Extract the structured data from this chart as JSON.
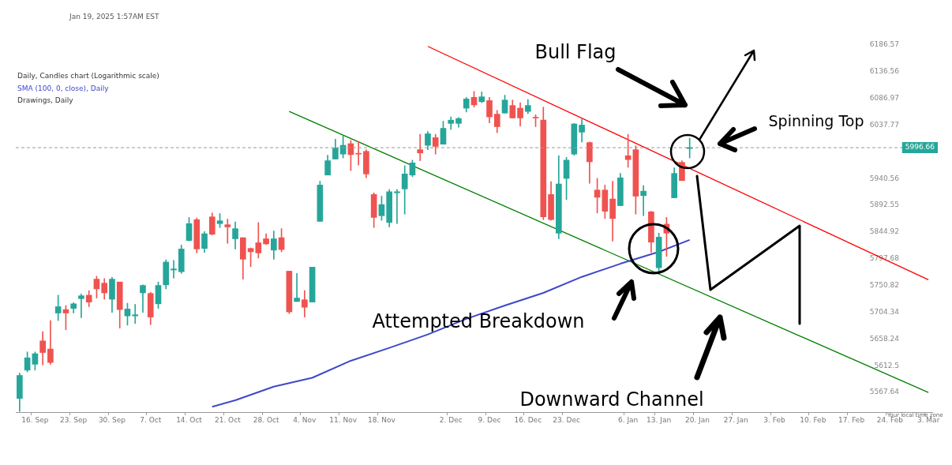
{
  "chart_data": {
    "type": "candlestick",
    "title": "Daily, Candles chart (Logarithmic scale)",
    "categories": [
      null,
      null,
      "16. Sep",
      null,
      null,
      null,
      null,
      "23. Sep",
      null,
      null,
      null,
      null,
      "30. Sep",
      null,
      null,
      null,
      null,
      "7. Oct",
      null,
      null,
      null,
      null,
      "14. Oct",
      null,
      null,
      null,
      null,
      "21. Oct",
      null,
      null,
      null,
      null,
      "28. Oct",
      null,
      null,
      null,
      null,
      "4. Nov",
      null,
      null,
      null,
      null,
      "11. Nov",
      null,
      null,
      null,
      null,
      "18. Nov",
      null,
      null,
      null,
      null,
      null,
      null,
      null,
      null,
      "2. Dec",
      null,
      null,
      null,
      null,
      "9. Dec",
      null,
      null,
      null,
      null,
      "16. Dec",
      null,
      null,
      null,
      null,
      "23. Dec",
      null,
      null,
      null,
      null,
      null,
      null,
      null,
      "6. Jan",
      null,
      null,
      null,
      "13. Jan",
      null,
      null,
      null,
      null,
      "20. Jan",
      null,
      null,
      null,
      null,
      "27. Jan",
      null,
      null,
      null,
      null,
      "3. Feb",
      null,
      null,
      null,
      null,
      "10. Feb",
      null,
      null,
      null,
      null,
      "17. Feb",
      null,
      null,
      null,
      null,
      "24. Feb",
      null,
      null,
      null,
      null,
      "3. Mar"
    ],
    "ohlc": [
      [
        5557,
        5600,
        5535,
        5596
      ],
      [
        5605,
        5636,
        5602,
        5626
      ],
      [
        5615,
        5636,
        5605,
        5633
      ],
      [
        5655,
        5671,
        5614,
        5635
      ],
      [
        5641,
        5690,
        5615,
        5618
      ],
      [
        5703,
        5734,
        5690,
        5714
      ],
      [
        5709,
        5716,
        5674,
        5703
      ],
      [
        5711,
        5721,
        5703,
        5719
      ],
      [
        5728,
        5736,
        5695,
        5733
      ],
      [
        5734,
        5742,
        5714,
        5722
      ],
      [
        5762,
        5767,
        5729,
        5745
      ],
      [
        5755,
        5763,
        5727,
        5738
      ],
      [
        5727,
        5765,
        5704,
        5762
      ],
      [
        5757,
        5757,
        5677,
        5709
      ],
      [
        5698,
        5720,
        5682,
        5710
      ],
      [
        5698,
        5718,
        5685,
        5700
      ],
      [
        5738,
        5752,
        5704,
        5751
      ],
      [
        5737,
        5739,
        5683,
        5696
      ],
      [
        5719,
        5757,
        5711,
        5751
      ],
      [
        5752,
        5796,
        5745,
        5792
      ],
      [
        5778,
        5795,
        5764,
        5780
      ],
      [
        5775,
        5822,
        5772,
        5815
      ],
      [
        5830,
        5871,
        5829,
        5860
      ],
      [
        5867,
        5870,
        5808,
        5815
      ],
      [
        5816,
        5846,
        5809,
        5842
      ],
      [
        5872,
        5879,
        5840,
        5841
      ],
      [
        5860,
        5878,
        5853,
        5865
      ],
      [
        5858,
        5868,
        5825,
        5854
      ],
      [
        5833,
        5863,
        5815,
        5851
      ],
      [
        5835,
        5835,
        5762,
        5797
      ],
      [
        5816,
        5817,
        5784,
        5810
      ],
      [
        5826,
        5862,
        5799,
        5808
      ],
      [
        5833,
        5842,
        5823,
        5824
      ],
      [
        5813,
        5847,
        5797,
        5833
      ],
      [
        5835,
        5851,
        5810,
        5814
      ],
      [
        5776,
        5776,
        5702,
        5705
      ],
      [
        5723,
        5772,
        5723,
        5729
      ],
      [
        5726,
        5742,
        5696,
        5713
      ],
      [
        5722,
        5783,
        5722,
        5783
      ],
      [
        5864,
        5936,
        5864,
        5929
      ],
      [
        5947,
        5983,
        5947,
        5973
      ],
      [
        5976,
        6012,
        5976,
        5996
      ],
      [
        5985,
        6018,
        5978,
        6001
      ],
      [
        6004,
        6010,
        5955,
        5984
      ],
      [
        5986,
        6008,
        5965,
        5985
      ],
      [
        5990,
        5993,
        5942,
        5949
      ],
      [
        5912,
        5915,
        5853,
        5871
      ],
      [
        5874,
        5909,
        5866,
        5894
      ],
      [
        5862,
        5921,
        5854,
        5917
      ],
      [
        5915,
        5921,
        5860,
        5917
      ],
      [
        5922,
        5964,
        5877,
        5949
      ],
      [
        5947,
        5974,
        5944,
        5969
      ],
      [
        5993,
        6021,
        5973,
        5987
      ],
      [
        6001,
        6026,
        5993,
        6022
      ],
      [
        6015,
        6021,
        5985,
        5999
      ],
      [
        6003,
        6045,
        6003,
        6032
      ],
      [
        6041,
        6053,
        6030,
        6047
      ],
      [
        6041,
        6052,
        6034,
        6050
      ],
      [
        6069,
        6089,
        6062,
        6086
      ],
      [
        6089,
        6100,
        6071,
        6075
      ],
      [
        6081,
        6099,
        6079,
        6090
      ],
      [
        6083,
        6089,
        6042,
        6053
      ],
      [
        6058,
        6065,
        6024,
        6035
      ],
      [
        6060,
        6093,
        6060,
        6084
      ],
      [
        6074,
        6084,
        6051,
        6051
      ],
      [
        6069,
        6079,
        6036,
        6051
      ],
      [
        6063,
        6085,
        6059,
        6074
      ],
      [
        6052,
        6057,
        6035,
        6051
      ],
      [
        6047,
        6071,
        5867,
        5872
      ],
      [
        5912,
        5935,
        5866,
        5867
      ],
      [
        5843,
        5982,
        5833,
        5931
      ],
      [
        5941,
        5979,
        5903,
        5974
      ],
      [
        5985,
        6041,
        5983,
        6040
      ],
      [
        6025,
        6049,
        6007,
        6038
      ],
      [
        6006,
        6007,
        5932,
        5971
      ],
      [
        5920,
        5941,
        5879,
        5907
      ],
      [
        5920,
        5929,
        5869,
        5882
      ],
      [
        5904,
        5936,
        5829,
        5869
      ],
      [
        5892,
        5950,
        5892,
        5942
      ],
      [
        5982,
        6021,
        5961,
        5975
      ],
      [
        5993,
        6000,
        5877,
        5909
      ],
      [
        5910,
        5928,
        5874,
        5918
      ],
      [
        5881,
        5882,
        5809,
        5827
      ],
      [
        5782,
        5843,
        5773,
        5836
      ],
      [
        5859,
        5871,
        5802,
        5843
      ],
      [
        5906,
        5960,
        5906,
        5950
      ],
      [
        5970,
        5973,
        5937,
        5937
      ],
      [
        5995,
        6014,
        5978,
        5997
      ],
      null,
      null,
      null,
      null,
      null,
      null,
      null,
      null,
      null,
      null,
      null,
      null,
      null,
      null,
      null,
      null,
      null,
      null,
      null,
      null,
      null,
      null,
      null,
      null,
      null,
      null,
      null,
      null,
      null,
      null,
      null
    ],
    "colors": [
      "#26a69a",
      "#26a69a",
      "#26a69a",
      "#ef5350",
      "#ef5350",
      "#26a69a",
      "#ef5350",
      "#26a69a",
      "#26a69a",
      "#ef5350",
      "#ef5350",
      "#ef5350",
      "#26a69a",
      "#ef5350",
      "#26a69a",
      "#26a69a",
      "#26a69a",
      "#ef5350",
      "#26a69a",
      "#26a69a",
      "#26a69a",
      "#26a69a",
      "#26a69a",
      "#ef5350",
      "#26a69a",
      "#ef5350",
      "#26a69a",
      "#ef5350",
      "#26a69a",
      "#ef5350",
      "#ef5350",
      "#ef5350",
      "#ef5350",
      "#26a69a",
      "#ef5350",
      "#ef5350",
      "#26a69a",
      "#ef5350",
      "#26a69a",
      "#26a69a",
      "#26a69a",
      "#26a69a",
      "#26a69a",
      "#ef5350",
      "#ef5350",
      "#ef5350",
      "#ef5350",
      "#26a69a",
      "#26a69a",
      "#26a69a",
      "#26a69a",
      "#26a69a",
      "#ef5350",
      "#26a69a",
      "#ef5350",
      "#26a69a",
      "#26a69a",
      "#26a69a",
      "#26a69a",
      "#ef5350",
      "#26a69a",
      "#ef5350",
      "#ef5350",
      "#26a69a",
      "#ef5350",
      "#ef5350",
      "#26a69a",
      "#ef5350",
      "#ef5350",
      "#ef5350",
      "#26a69a",
      "#26a69a",
      "#26a69a",
      "#26a69a",
      "#ef5350",
      "#ef5350",
      "#ef5350",
      "#ef5350",
      "#26a69a",
      "#ef5350",
      "#ef5350",
      "#26a69a",
      "#ef5350",
      "#26a69a",
      "#ef5350",
      "#26a69a",
      "#ef5350",
      "#26a69a",
      null,
      null,
      null,
      null,
      null,
      null,
      null,
      null,
      null,
      null,
      null,
      null,
      null,
      null,
      null,
      null,
      null,
      null,
      null,
      null,
      null,
      null,
      null,
      null,
      null,
      null,
      null,
      null,
      null,
      null,
      null
    ],
    "series": [
      {
        "type": "line",
        "name": "SMA (100, 0, close), Daily",
        "color": "#3f48c8",
        "values": [
          null,
          null,
          null,
          null,
          null,
          null,
          null,
          null,
          null,
          null,
          null,
          null,
          null,
          null,
          null,
          null,
          null,
          null,
          null,
          null,
          null,
          null,
          null,
          null,
          null,
          5543,
          null,
          null,
          5554,
          null,
          null,
          null,
          null,
          5577,
          null,
          null,
          null,
          null,
          5592,
          null,
          null,
          null,
          null,
          5621,
          null,
          null,
          null,
          null,
          5643,
          null,
          null,
          null,
          null,
          5666,
          null,
          null,
          null,
          null,
          5693,
          null,
          null,
          null,
          null,
          5716,
          null,
          null,
          null,
          null,
          5738,
          null,
          null,
          null,
          null,
          5766,
          null,
          null,
          null,
          null,
          5789,
          null,
          null,
          null,
          null,
          5810,
          null,
          null,
          null,
          5831,
          null,
          null,
          null,
          null,
          null,
          null,
          null,
          null,
          null,
          null,
          null,
          null,
          null,
          null,
          null,
          null,
          null,
          null,
          null,
          null,
          null,
          null,
          null,
          null,
          null,
          null,
          null,
          null,
          null,
          null,
          null
        ]
      },
      {
        "type": "line",
        "color": "#ff0000",
        "values": [
          null,
          null,
          null,
          null,
          null,
          null,
          null,
          null,
          null,
          null,
          null,
          null,
          null,
          null,
          null,
          null,
          null,
          null,
          null,
          null,
          null,
          null,
          null,
          null,
          null,
          null,
          null,
          null,
          null,
          null,
          null,
          null,
          null,
          null,
          null,
          null,
          null,
          null,
          null,
          null,
          null,
          null,
          null,
          null,
          null,
          null,
          null,
          null,
          null,
          null,
          null,
          null,
          null,
          6184,
          null,
          null,
          null,
          null,
          null,
          null,
          null,
          null,
          null,
          null,
          null,
          null,
          null,
          null,
          null,
          null,
          null,
          null,
          null,
          null,
          null,
          null,
          null,
          null,
          null,
          null,
          null,
          null,
          null,
          null,
          null,
          null,
          null,
          null,
          null,
          null,
          null,
          null,
          null,
          null,
          null,
          null,
          null,
          null,
          null,
          null,
          null,
          null,
          null,
          null,
          null,
          null,
          null,
          null,
          null,
          null,
          null,
          null,
          null,
          null,
          null,
          null,
          null,
          null,
          5761
        ]
      },
      {
        "type": "line",
        "color": "#008000",
        "values": [
          null,
          null,
          null,
          null,
          null,
          null,
          null,
          null,
          null,
          null,
          null,
          null,
          null,
          null,
          null,
          null,
          null,
          null,
          null,
          null,
          null,
          null,
          null,
          null,
          null,
          null,
          null,
          null,
          null,
          null,
          null,
          null,
          null,
          null,
          null,
          6063,
          null,
          null,
          null,
          null,
          null,
          null,
          null,
          null,
          null,
          null,
          null,
          null,
          null,
          null,
          null,
          null,
          null,
          null,
          null,
          null,
          null,
          null,
          null,
          null,
          null,
          null,
          null,
          null,
          null,
          null,
          null,
          null,
          null,
          null,
          null,
          null,
          null,
          null,
          null,
          null,
          null,
          null,
          null,
          null,
          null,
          null,
          null,
          null,
          null,
          null,
          null,
          null,
          null,
          null,
          null,
          null,
          null,
          null,
          null,
          null,
          null,
          null,
          null,
          null,
          null,
          null,
          null,
          null,
          null,
          null,
          null,
          null,
          null,
          null,
          null,
          null,
          null,
          null,
          null,
          null,
          null,
          null,
          5567
        ]
      }
    ],
    "ylim": [
      5534,
      6186.57
    ],
    "yticks": [
      5567.64,
      5612.5,
      5658.24,
      5704.34,
      5750.82,
      5797.68,
      5844.92,
      5892.55,
      5940.56,
      6037.77,
      6086.97,
      6136.56,
      6186.57
    ],
    "log": "y",
    "grid": false,
    "legend": false,
    "ref_lines": [
      {
        "axis": "y",
        "value": 5996.66,
        "label": "5996.66",
        "color": "#999999",
        "line_style": "dashed"
      }
    ],
    "annotations": [
      "Jan 19, 2025 1:57AM EST",
      "Drawings, Daily",
      "Bull Flag",
      "Spinning Top",
      "Attempted Breakdown",
      "Downward Channel",
      "Your local time zone"
    ]
  }
}
